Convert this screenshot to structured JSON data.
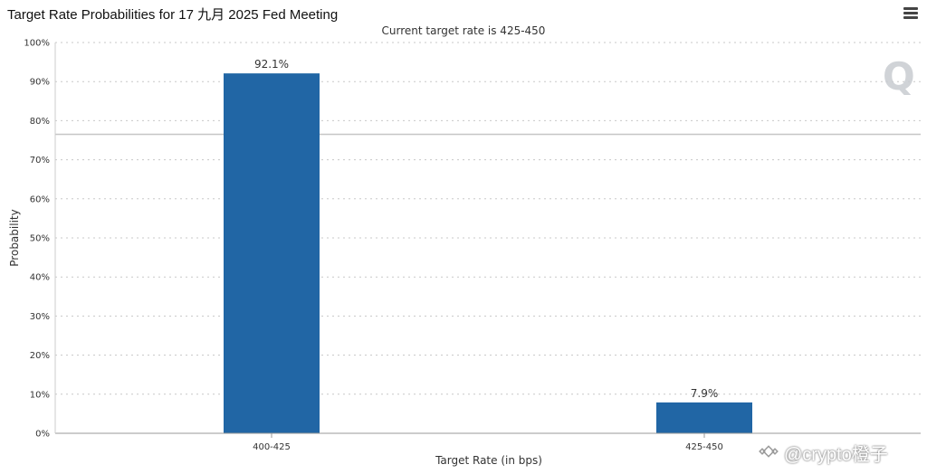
{
  "header": {
    "title": "Target Rate Probabilities for 17 九月 2025 Fed Meeting",
    "menu_icon": "hamburger-menu-icon"
  },
  "watermark": {
    "logo_letter": "Q",
    "credit": "@crypto橙子"
  },
  "chart_data": {
    "type": "bar",
    "subtitle": "Current target rate is 425-450",
    "categories": [
      "400-425",
      "425-450"
    ],
    "values": [
      92.1,
      7.9
    ],
    "data_labels": [
      "92.1%",
      "7.9%"
    ],
    "xlabel": "Target Rate (in bps)",
    "ylabel": "Probability",
    "ylim": [
      0,
      100
    ],
    "yticks": [
      "0%",
      "10%",
      "20%",
      "30%",
      "40%",
      "50%",
      "60%",
      "70%",
      "80%",
      "90%",
      "100%"
    ],
    "reference_line": 76.5,
    "bar_color": "#2166a5",
    "grid": true
  }
}
